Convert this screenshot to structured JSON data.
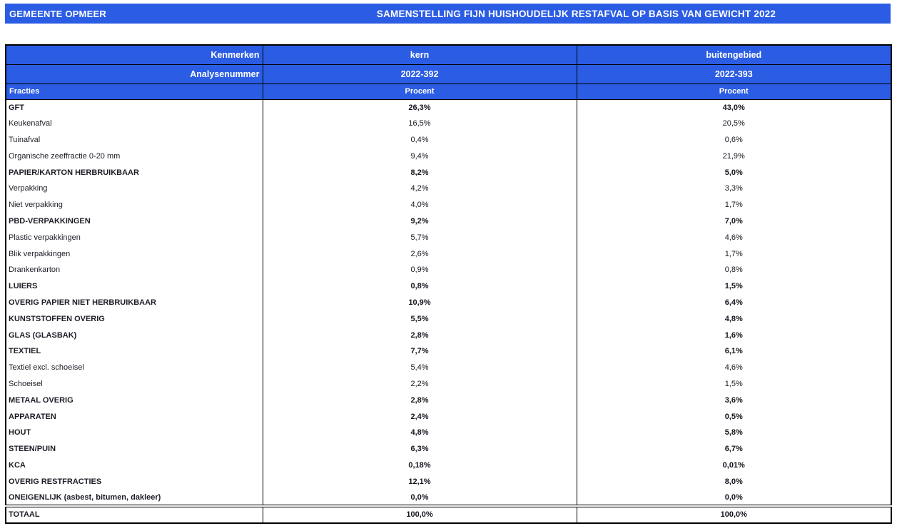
{
  "page": {
    "municipality": "GEMEENTE OPMEER",
    "title": "SAMENSTELLING FIJN HUISHOUDELIJK RESTAFVAL OP BASIS VAN GEWICHT 2022"
  },
  "colors": {
    "header_blue": "#2b5ce4",
    "header_text": "#ffffff",
    "border": "#000000"
  },
  "table": {
    "header": {
      "kenmerken_label": "Kenmerken",
      "analysenummer_label": "Analysenummer",
      "fracties_label": "Fracties",
      "columns": [
        {
          "kenmerk": "kern",
          "analysenummer": "2022-392",
          "unit_label": "Procent"
        },
        {
          "kenmerk": "buitengebied",
          "analysenummer": "2022-393",
          "unit_label": "Procent"
        }
      ]
    },
    "rows": [
      {
        "label": "GFT",
        "kern": "26,3%",
        "buitengebied": "43,0%",
        "bold": true
      },
      {
        "label": "Keukenafval",
        "kern": "16,5%",
        "buitengebied": "20,5%",
        "bold": false
      },
      {
        "label": "Tuinafval",
        "kern": "0,4%",
        "buitengebied": "0,6%",
        "bold": false
      },
      {
        "label": "Organische zeeffractie 0-20 mm",
        "kern": "9,4%",
        "buitengebied": "21,9%",
        "bold": false
      },
      {
        "label": "PAPIER/KARTON HERBRUIKBAAR",
        "kern": "8,2%",
        "buitengebied": "5,0%",
        "bold": true
      },
      {
        "label": "Verpakking",
        "kern": "4,2%",
        "buitengebied": "3,3%",
        "bold": false
      },
      {
        "label": "Niet verpakking",
        "kern": "4,0%",
        "buitengebied": "1,7%",
        "bold": false
      },
      {
        "label": "PBD-VERPAKKINGEN",
        "kern": "9,2%",
        "buitengebied": "7,0%",
        "bold": true
      },
      {
        "label": "Plastic verpakkingen",
        "kern": "5,7%",
        "buitengebied": "4,6%",
        "bold": false
      },
      {
        "label": "Blik verpakkingen",
        "kern": "2,6%",
        "buitengebied": "1,7%",
        "bold": false
      },
      {
        "label": "Drankenkarton",
        "kern": "0,9%",
        "buitengebied": "0,8%",
        "bold": false
      },
      {
        "label": "LUIERS",
        "kern": "0,8%",
        "buitengebied": "1,5%",
        "bold": true
      },
      {
        "label": "OVERIG PAPIER NIET HERBRUIKBAAR",
        "kern": "10,9%",
        "buitengebied": "6,4%",
        "bold": true
      },
      {
        "label": "KUNSTSTOFFEN OVERIG",
        "kern": "5,5%",
        "buitengebied": "4,8%",
        "bold": true
      },
      {
        "label": "GLAS (GLASBAK)",
        "kern": "2,8%",
        "buitengebied": "1,6%",
        "bold": true
      },
      {
        "label": "TEXTIEL",
        "kern": "7,7%",
        "buitengebied": "6,1%",
        "bold": true
      },
      {
        "label": "Textiel excl. schoeisel",
        "kern": "5,4%",
        "buitengebied": "4,6%",
        "bold": false
      },
      {
        "label": "Schoeisel",
        "kern": "2,2%",
        "buitengebied": "1,5%",
        "bold": false
      },
      {
        "label": "METAAL OVERIG",
        "kern": "2,8%",
        "buitengebied": "3,6%",
        "bold": true
      },
      {
        "label": "APPARATEN",
        "kern": "2,4%",
        "buitengebied": "0,5%",
        "bold": true
      },
      {
        "label": "HOUT",
        "kern": "4,8%",
        "buitengebied": "5,8%",
        "bold": true
      },
      {
        "label": "STEEN/PUIN",
        "kern": "6,3%",
        "buitengebied": "6,7%",
        "bold": true
      },
      {
        "label": "KCA",
        "kern": "0,18%",
        "buitengebied": "0,01%",
        "bold": true
      },
      {
        "label": "OVERIG RESTFRACTIES",
        "kern": "12,1%",
        "buitengebied": "8,0%",
        "bold": true
      },
      {
        "label": "ONEIGENLIJK (asbest, bitumen, dakleer)",
        "kern": "0,0%",
        "buitengebied": "0,0%",
        "bold": true
      },
      {
        "label": "TOTAAL",
        "kern": "100,0%",
        "buitengebied": "100,0%",
        "bold": true,
        "total": true
      }
    ]
  }
}
